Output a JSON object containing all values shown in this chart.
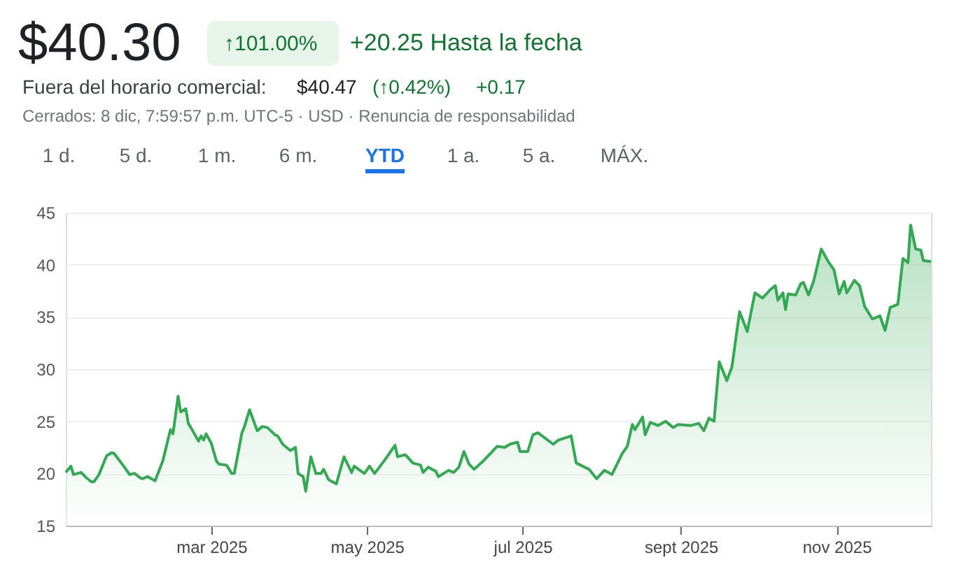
{
  "chart_data": {
    "type": "area",
    "title": "$40.30",
    "annotations": [
      "↑101.00%",
      "+20.25 Hasta la fecha",
      "Fuera del horario comercial:",
      "$40.47",
      "(↑0.42%)",
      "+0.17",
      "Cerrados: 8 dic, 7:59:57 p.m. UTC-5 · USD · Renuncia de responsabilidad",
      "1 d.",
      "5 d.",
      "1 m.",
      "6 m.",
      "YTD",
      "1 a.",
      "5 a.",
      "MÁX."
    ],
    "x": [
      "2025-01-03",
      "2025-01-05",
      "2025-01-06",
      "2025-01-09",
      "2025-01-11",
      "2025-01-13",
      "2025-01-14",
      "2025-01-16",
      "2025-01-19",
      "2025-01-21",
      "2025-01-22",
      "2025-01-26",
      "2025-01-28",
      "2025-01-30",
      "2025-02-01",
      "2025-02-02",
      "2025-02-04",
      "2025-02-07",
      "2025-02-10",
      "2025-02-13",
      "2025-02-14",
      "2025-02-16",
      "2025-02-17",
      "2025-02-19",
      "2025-02-20",
      "2025-02-21",
      "2025-02-24",
      "2025-02-25",
      "2025-02-26",
      "2025-02-27",
      "2025-03-01",
      "2025-03-03",
      "2025-03-04",
      "2025-03-07",
      "2025-03-09",
      "2025-03-10",
      "2025-03-13",
      "2025-03-14",
      "2025-03-16",
      "2025-03-19",
      "2025-03-21",
      "2025-03-23",
      "2025-03-26",
      "2025-03-27",
      "2025-03-29",
      "2025-04-01",
      "2025-04-03",
      "2025-04-04",
      "2025-04-06",
      "2025-04-07",
      "2025-04-09",
      "2025-04-11",
      "2025-04-13",
      "2025-04-14",
      "2025-04-16",
      "2025-04-19",
      "2025-04-22",
      "2025-04-25",
      "2025-04-26",
      "2025-04-30",
      "2025-05-02",
      "2025-05-04",
      "2025-05-08",
      "2025-05-12",
      "2025-05-13",
      "2025-05-16",
      "2025-05-19",
      "2025-05-22",
      "2025-05-23",
      "2025-05-25",
      "2025-05-28",
      "2025-05-29",
      "2025-06-02",
      "2025-06-04",
      "2025-06-06",
      "2025-06-08",
      "2025-06-10",
      "2025-06-12",
      "2025-06-16",
      "2025-06-21",
      "2025-06-24",
      "2025-06-26",
      "2025-06-29",
      "2025-06-30",
      "2025-07-03",
      "2025-07-05",
      "2025-07-07",
      "2025-07-13",
      "2025-07-15",
      "2025-07-20",
      "2025-07-22",
      "2025-07-27",
      "2025-07-30",
      "2025-08-02",
      "2025-08-05",
      "2025-08-09",
      "2025-08-11",
      "2025-08-13",
      "2025-08-14",
      "2025-08-17",
      "2025-08-18",
      "2025-08-20",
      "2025-08-23",
      "2025-08-26",
      "2025-08-29",
      "2025-08-31",
      "2025-09-05",
      "2025-09-08",
      "2025-09-10",
      "2025-09-12",
      "2025-09-14",
      "2025-09-16",
      "2025-09-19",
      "2025-09-21",
      "2025-09-24",
      "2025-09-27",
      "2025-09-30",
      "2025-10-03",
      "2025-10-06",
      "2025-10-08",
      "2025-10-09",
      "2025-10-11",
      "2025-10-12",
      "2025-10-13",
      "2025-10-16",
      "2025-10-18",
      "2025-10-19",
      "2025-10-21",
      "2025-10-23",
      "2025-10-26",
      "2025-10-29",
      "2025-10-31",
      "2025-11-02",
      "2025-11-04",
      "2025-11-05",
      "2025-11-08",
      "2025-11-10",
      "2025-11-12",
      "2025-11-15",
      "2025-11-18",
      "2025-11-20",
      "2025-11-22",
      "2025-11-25",
      "2025-11-27",
      "2025-11-29",
      "2025-11-30",
      "2025-12-02",
      "2025-12-04",
      "2025-12-05",
      "2025-12-08"
    ],
    "series": [
      {
        "color": "#34a853",
        "values": [
          20.1,
          20.7,
          19.9,
          20.1,
          19.6,
          19.2,
          19.2,
          19.9,
          21.7,
          22.0,
          21.9,
          20.6,
          19.9,
          20.0,
          19.6,
          19.5,
          19.7,
          19.3,
          21.2,
          24.2,
          23.8,
          27.4,
          25.9,
          26.2,
          24.8,
          24.4,
          23.1,
          23.6,
          23.2,
          23.8,
          22.9,
          21.2,
          20.9,
          20.8,
          20.0,
          20.0,
          23.9,
          24.5,
          26.1,
          24.1,
          24.5,
          24.4,
          23.7,
          23.6,
          22.8,
          22.2,
          22.5,
          20.0,
          19.7,
          18.3,
          21.6,
          20.0,
          20.0,
          20.4,
          19.4,
          19.0,
          21.6,
          20.1,
          20.7,
          20.0,
          20.7,
          20.0,
          21.3,
          22.7,
          21.6,
          21.8,
          21.0,
          20.8,
          20.1,
          20.6,
          20.2,
          19.7,
          20.3,
          20.1,
          20.6,
          22.1,
          20.9,
          20.4,
          21.3,
          22.6,
          22.5,
          22.8,
          23.0,
          22.1,
          22.1,
          23.7,
          23.9,
          22.8,
          23.2,
          23.6,
          21.0,
          20.4,
          19.5,
          20.3,
          19.9,
          21.9,
          22.6,
          24.7,
          24.2,
          25.4,
          23.7,
          24.9,
          24.6,
          25.0,
          24.4,
          24.7,
          24.6,
          24.8,
          24.1,
          25.3,
          25.0,
          30.7,
          28.9,
          30.2,
          35.5,
          33.6,
          37.3,
          36.8,
          37.6,
          38.0,
          36.6,
          37.3,
          35.7,
          37.2,
          37.1,
          38.2,
          38.3,
          37.1,
          38.4,
          41.5,
          40.2,
          39.5,
          37.2,
          38.4,
          37.3,
          38.5,
          38.0,
          36.0,
          34.8,
          35.1,
          33.7,
          35.9,
          36.2,
          40.6,
          40.2,
          43.8,
          41.5,
          41.4,
          40.4,
          40.3
        ]
      }
    ],
    "xlim": [
      "2025-01-03",
      "2025-12-08"
    ],
    "xticks": [
      {
        "value": "2025-03-01",
        "label": "mar 2025"
      },
      {
        "value": "2025-05-01",
        "label": "may 2025"
      },
      {
        "value": "2025-07-01",
        "label": "jul 2025"
      },
      {
        "value": "2025-09-01",
        "label": "sept 2025"
      },
      {
        "value": "2025-11-01",
        "label": "nov 2025"
      }
    ],
    "ylim": [
      15,
      45
    ],
    "yticks": [
      15,
      20,
      25,
      30,
      35,
      40,
      45
    ],
    "grid": "y"
  }
}
